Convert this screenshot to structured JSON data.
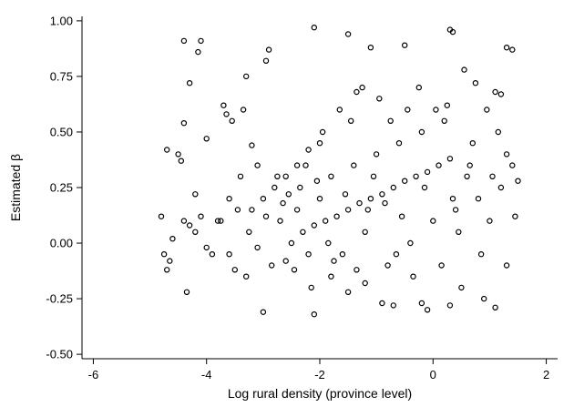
{
  "chart_data": {
    "type": "scatter",
    "xlabel": "Log rural density (province level)",
    "ylabel": "Estimated β",
    "xlim": [
      -6.2,
      2.2
    ],
    "ylim": [
      -0.52,
      1.02
    ],
    "x_ticks": [
      -6,
      -4,
      -2,
      0,
      2
    ],
    "x_tick_labels": [
      "-6",
      "-4",
      "-2",
      "0",
      "2"
    ],
    "y_ticks": [
      -0.5,
      -0.25,
      0,
      0.25,
      0.5,
      0.75,
      1.0
    ],
    "y_tick_labels": [
      "-0.50",
      "-0.25",
      "0.00",
      "0.25",
      "0.50",
      "0.75",
      "1.00"
    ],
    "grid": false,
    "marker": "hollow-circle",
    "marker_color": "#000000",
    "points": [
      [
        -4.4,
        0.91
      ],
      [
        -4.1,
        0.91
      ],
      [
        -4.15,
        0.86
      ],
      [
        -4.3,
        0.72
      ],
      [
        -3.3,
        0.75
      ],
      [
        -2.9,
        0.87
      ],
      [
        -2.95,
        0.82
      ],
      [
        -2.1,
        0.97
      ],
      [
        -1.5,
        0.94
      ],
      [
        -1.1,
        0.88
      ],
      [
        -0.5,
        0.89
      ],
      [
        0.3,
        0.96
      ],
      [
        0.35,
        0.95
      ],
      [
        1.3,
        0.88
      ],
      [
        1.4,
        0.87
      ],
      [
        1.1,
        0.68
      ],
      [
        1.2,
        0.67
      ],
      [
        -4.4,
        0.54
      ],
      [
        -4.7,
        0.42
      ],
      [
        -4.5,
        0.4
      ],
      [
        -4.45,
        0.37
      ],
      [
        -4.0,
        0.47
      ],
      [
        -3.7,
        0.62
      ],
      [
        -3.65,
        0.58
      ],
      [
        -3.55,
        0.55
      ],
      [
        -3.35,
        0.6
      ],
      [
        -3.2,
        0.44
      ],
      [
        -3.1,
        0.35
      ],
      [
        -4.2,
        0.22
      ],
      [
        -4.1,
        0.12
      ],
      [
        -4.3,
        0.08
      ],
      [
        -4.8,
        0.12
      ],
      [
        -4.6,
        0.02
      ],
      [
        -4.4,
        0.1
      ],
      [
        -4.2,
        0.05
      ],
      [
        -4.75,
        -0.05
      ],
      [
        -4.65,
        -0.08
      ],
      [
        -4.7,
        -0.12
      ],
      [
        -4.35,
        -0.22
      ],
      [
        -4.0,
        -0.02
      ],
      [
        -3.8,
        0.1
      ],
      [
        -3.6,
        0.2
      ],
      [
        -3.4,
        0.3
      ],
      [
        -3.2,
        0.15
      ],
      [
        -3.0,
        0.2
      ],
      [
        -2.8,
        0.25
      ],
      [
        -2.6,
        0.3
      ],
      [
        -2.4,
        0.35
      ],
      [
        -2.2,
        0.42
      ],
      [
        -2.0,
        0.45
      ],
      [
        -3.9,
        -0.05
      ],
      [
        -3.5,
        -0.12
      ],
      [
        -3.3,
        -0.15
      ],
      [
        -3.0,
        -0.31
      ],
      [
        -2.1,
        -0.32
      ],
      [
        -1.8,
        -0.15
      ],
      [
        -1.5,
        -0.22
      ],
      [
        -1.2,
        -0.18
      ],
      [
        -0.9,
        -0.27
      ],
      [
        -0.7,
        -0.28
      ],
      [
        -0.2,
        -0.27
      ],
      [
        -0.1,
        -0.3
      ],
      [
        0.3,
        -0.28
      ],
      [
        0.5,
        -0.2
      ],
      [
        0.9,
        -0.25
      ],
      [
        1.1,
        -0.29
      ],
      [
        1.3,
        -0.1
      ],
      [
        1.45,
        0.12
      ],
      [
        1.5,
        0.28
      ],
      [
        1.4,
        0.35
      ],
      [
        -2.5,
        0.0
      ],
      [
        -2.3,
        0.05
      ],
      [
        -2.1,
        0.08
      ],
      [
        -1.9,
        0.1
      ],
      [
        -1.7,
        0.12
      ],
      [
        -1.5,
        0.15
      ],
      [
        -1.3,
        0.18
      ],
      [
        -1.1,
        0.2
      ],
      [
        -0.9,
        0.22
      ],
      [
        -0.7,
        0.25
      ],
      [
        -0.5,
        0.28
      ],
      [
        -0.3,
        0.3
      ],
      [
        -0.1,
        0.32
      ],
      [
        0.1,
        0.35
      ],
      [
        0.3,
        0.38
      ],
      [
        -2.4,
        0.15
      ],
      [
        -2.2,
        -0.05
      ],
      [
        -2.0,
        0.2
      ],
      [
        -1.8,
        0.3
      ],
      [
        -1.6,
        -0.05
      ],
      [
        -1.4,
        0.35
      ],
      [
        -1.2,
        0.05
      ],
      [
        -1.0,
        0.4
      ],
      [
        -0.8,
        -0.1
      ],
      [
        -0.6,
        0.45
      ],
      [
        -0.4,
        0.0
      ],
      [
        -0.2,
        0.5
      ],
      [
        0.0,
        0.1
      ],
      [
        0.2,
        0.55
      ],
      [
        0.4,
        0.15
      ],
      [
        0.6,
        0.3
      ],
      [
        0.8,
        0.2
      ],
      [
        1.0,
        0.1
      ],
      [
        1.2,
        0.25
      ],
      [
        0.7,
        0.45
      ],
      [
        -2.7,
        0.1
      ],
      [
        -2.6,
        -0.08
      ],
      [
        -2.55,
        0.22
      ],
      [
        -1.95,
        0.5
      ],
      [
        -1.85,
        0.0
      ],
      [
        -1.65,
        0.6
      ],
      [
        -1.45,
        0.55
      ],
      [
        -1.35,
        0.68
      ],
      [
        -1.25,
        0.7
      ],
      [
        -0.95,
        0.65
      ],
      [
        -0.75,
        0.55
      ],
      [
        -0.45,
        0.6
      ],
      [
        -0.25,
        0.7
      ],
      [
        0.05,
        0.6
      ],
      [
        0.25,
        0.62
      ],
      [
        0.55,
        0.78
      ],
      [
        0.75,
        0.72
      ],
      [
        0.95,
        0.6
      ],
      [
        1.15,
        0.5
      ],
      [
        1.3,
        0.4
      ],
      [
        -3.75,
        0.1
      ],
      [
        -3.6,
        -0.05
      ],
      [
        -3.45,
        0.15
      ],
      [
        -3.25,
        0.05
      ],
      [
        -3.1,
        -0.02
      ],
      [
        -2.95,
        0.12
      ],
      [
        -2.85,
        -0.1
      ],
      [
        -2.75,
        0.3
      ],
      [
        -2.65,
        0.18
      ],
      [
        -2.45,
        -0.12
      ],
      [
        -2.35,
        0.25
      ],
      [
        -2.25,
        0.35
      ],
      [
        -2.15,
        -0.2
      ],
      [
        -2.05,
        0.28
      ],
      [
        -1.75,
        -0.08
      ],
      [
        -1.55,
        0.22
      ],
      [
        -1.35,
        -0.12
      ],
      [
        -1.15,
        0.15
      ],
      [
        -1.05,
        0.3
      ],
      [
        -0.85,
        0.18
      ],
      [
        -0.65,
        -0.05
      ],
      [
        -0.55,
        0.12
      ],
      [
        -0.35,
        -0.15
      ],
      [
        -0.15,
        0.25
      ],
      [
        0.15,
        -0.1
      ],
      [
        0.35,
        0.2
      ],
      [
        0.45,
        0.05
      ],
      [
        0.65,
        0.35
      ],
      [
        0.85,
        -0.05
      ],
      [
        1.05,
        0.3
      ]
    ]
  }
}
